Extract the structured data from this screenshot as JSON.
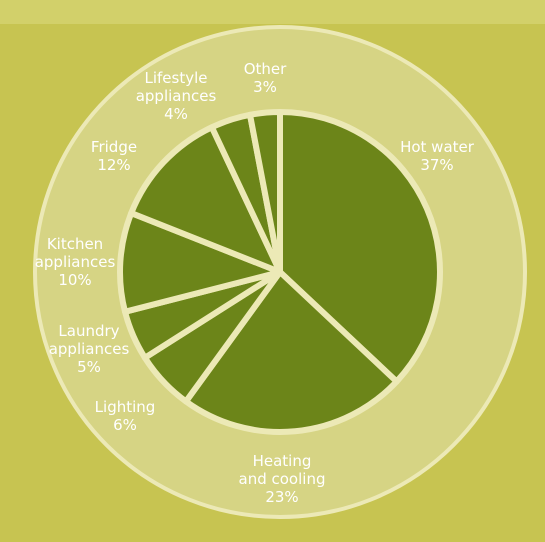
{
  "chart_data": {
    "type": "pie",
    "title": "",
    "slices": [
      {
        "label": "Hot water",
        "value": 37,
        "value_label": "37%"
      },
      {
        "label": "Heating\nand cooling",
        "value": 23,
        "value_label": "23%"
      },
      {
        "label": "Lighting",
        "value": 6,
        "value_label": "6%"
      },
      {
        "label": "Laundry\nappliances",
        "value": 5,
        "value_label": "5%"
      },
      {
        "label": "Kitchen\nappliances",
        "value": 10,
        "value_label": "10%"
      },
      {
        "label": "Fridge",
        "value": 12,
        "value_label": "12%"
      },
      {
        "label": "Lifestyle\nappliances",
        "value": 4,
        "value_label": "4%"
      },
      {
        "label": "Other",
        "value": 3,
        "value_label": "3%"
      }
    ],
    "start_angle": "12 o'clock, clockwise",
    "legend": "none",
    "colors": {
      "background": "#c7c451",
      "outer_disc": "#d6d484",
      "slice_fill": "#6c8519",
      "separator": "#ece9b6",
      "label_text": "#ffffff"
    }
  }
}
